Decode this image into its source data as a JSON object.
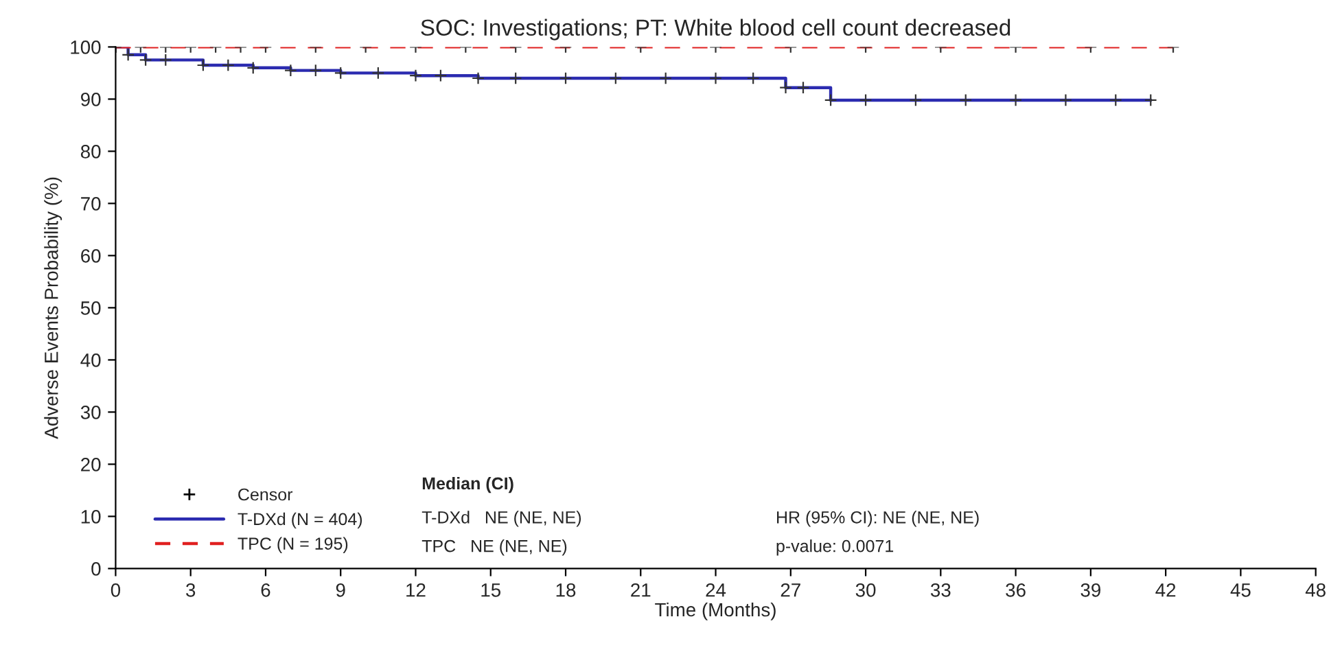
{
  "chart_data": {
    "type": "step",
    "title": "SOC: Investigations; PT: White blood cell count decreased",
    "xlabel": "Time (Months)",
    "ylabel": "Adverse Events Probability (%)",
    "xlim": [
      0,
      48
    ],
    "xticks": [
      0,
      3,
      6,
      9,
      12,
      15,
      18,
      21,
      24,
      27,
      30,
      33,
      36,
      39,
      42,
      45,
      48
    ],
    "ylim": [
      0,
      100
    ],
    "yticks": [
      0,
      10,
      20,
      30,
      40,
      50,
      60,
      70,
      80,
      90,
      100
    ],
    "marker": "cross",
    "grid": false,
    "legend": "bottom left",
    "series": [
      {
        "name": "T-DXd (N = 404)",
        "color": "#2b2bb0",
        "line_style": "solid",
        "x": [
          0,
          0.5,
          1.2,
          2,
          3.5,
          4.5,
          5.5,
          7,
          8,
          9,
          10.5,
          12,
          13,
          14.5,
          16,
          18,
          20,
          22,
          24,
          25.5,
          26.8,
          27.5,
          28.6,
          30,
          32,
          34,
          36,
          38,
          40,
          41.4
        ],
        "values": [
          100,
          98.5,
          97.5,
          97.5,
          96.5,
          96.5,
          96,
          95.5,
          95.5,
          95,
          95,
          94.5,
          94.5,
          94,
          94,
          94,
          94,
          94,
          94,
          94,
          92.2,
          92.2,
          89.8,
          89.8,
          89.8,
          89.8,
          89.8,
          89.8,
          89.8,
          89.8
        ]
      },
      {
        "name": "TPC (N = 195)",
        "color": "#e02020",
        "line_style": "dashed",
        "x": [
          0,
          1,
          2,
          3,
          4,
          5,
          6,
          8,
          10,
          12,
          14,
          16,
          18,
          21,
          24,
          27,
          30,
          33,
          36,
          39,
          42.3
        ],
        "values": [
          100,
          100,
          100,
          100,
          100,
          100,
          100,
          100,
          100,
          100,
          100,
          100,
          100,
          100,
          100,
          100,
          100,
          100,
          100,
          100,
          100
        ]
      }
    ],
    "annotations": [
      "Censor",
      "Median (CI)",
      "T-DXd   NE (NE, NE)",
      "TPC   NE (NE, NE)",
      "HR (95% CI): NE (NE, NE)",
      "p-value: 0.0071"
    ]
  }
}
